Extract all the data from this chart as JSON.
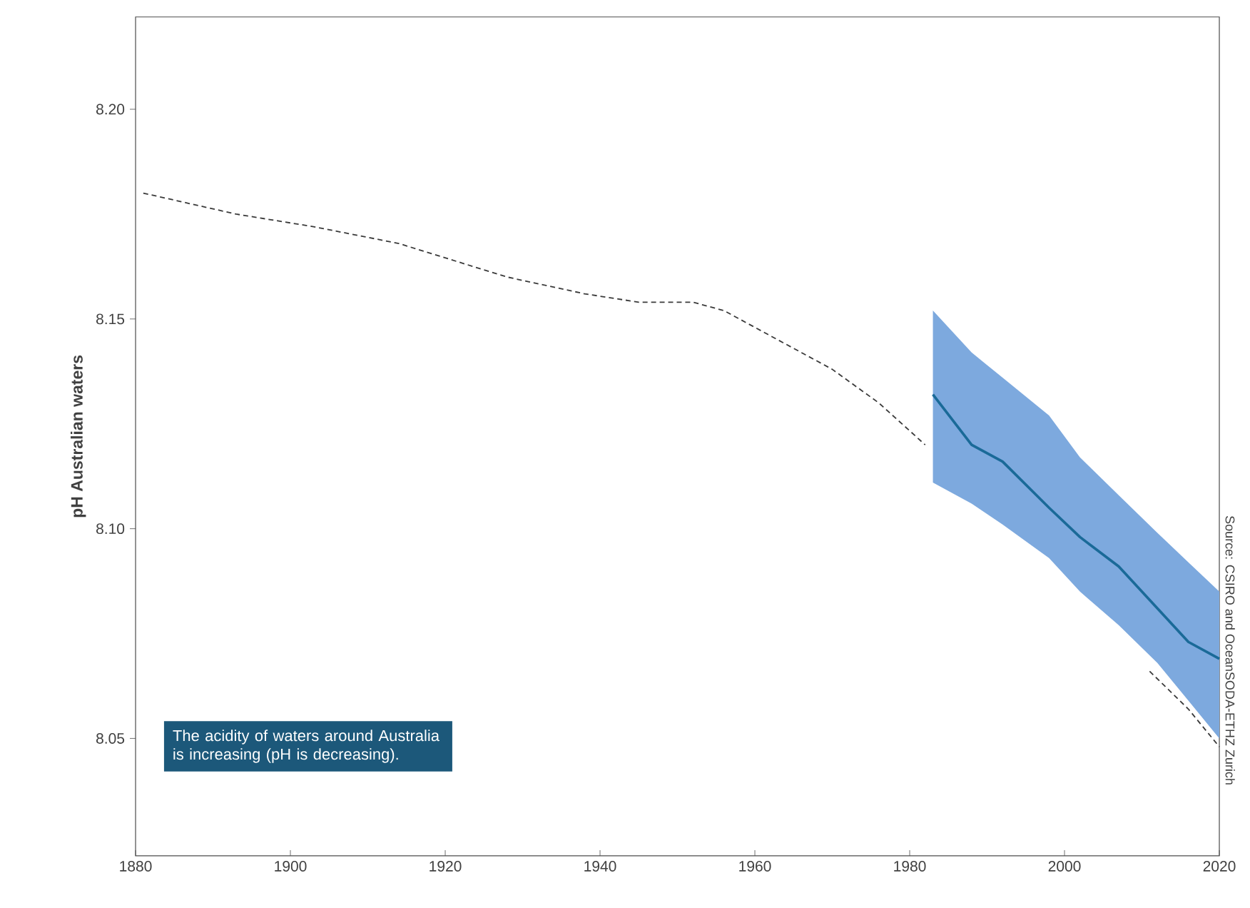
{
  "chart_data": {
    "type": "line",
    "ylabel": "pH Australian waters",
    "xlim": [
      1880,
      2020
    ],
    "ylim": [
      8.022,
      8.222
    ],
    "xticks": [
      1880,
      1900,
      1920,
      1940,
      1960,
      1980,
      2000,
      2020
    ],
    "yticks": [
      {
        "value": 8.05,
        "label": "8.05"
      },
      {
        "value": 8.1,
        "label": "8.10"
      },
      {
        "value": 8.15,
        "label": "8.15"
      },
      {
        "value": 8.2,
        "label": "8.20"
      }
    ],
    "marker": "none",
    "series": [
      {
        "line_style": "dashed",
        "color": "#3a3a3a",
        "x": [
          1881,
          1893,
          1903,
          1914,
          1928,
          1938,
          1945,
          1952,
          1956,
          1964,
          1970,
          1976,
          1982,
          1996,
          2011,
          2016,
          2020
        ],
        "values": [
          8.18,
          8.175,
          8.172,
          8.168,
          8.16,
          8.156,
          8.154,
          8.154,
          8.152,
          8.144,
          8.138,
          8.13,
          8.12,
          null,
          8.066,
          8.057,
          8.048
        ]
      },
      {
        "line_style": "solid",
        "color": "#1a6a98",
        "x": [
          1983,
          1988,
          1992,
          1998,
          2002,
          2007,
          2012,
          2016,
          2020
        ],
        "values": [
          8.132,
          8.12,
          8.116,
          8.105,
          8.098,
          8.091,
          8.081,
          8.073,
          8.069
        ],
        "upper": [
          8.152,
          8.142,
          8.136,
          8.127,
          8.117,
          8.108,
          8.099,
          8.092,
          8.085
        ],
        "lower": [
          8.111,
          8.106,
          8.101,
          8.093,
          8.085,
          8.077,
          8.068,
          8.059,
          8.05
        ]
      }
    ],
    "annotations": [
      "The acidity of waters around Australia is increasing (pH is decreasing).",
      "Source: CSIRO and OceanSODA-ETHZ Zurich"
    ]
  }
}
